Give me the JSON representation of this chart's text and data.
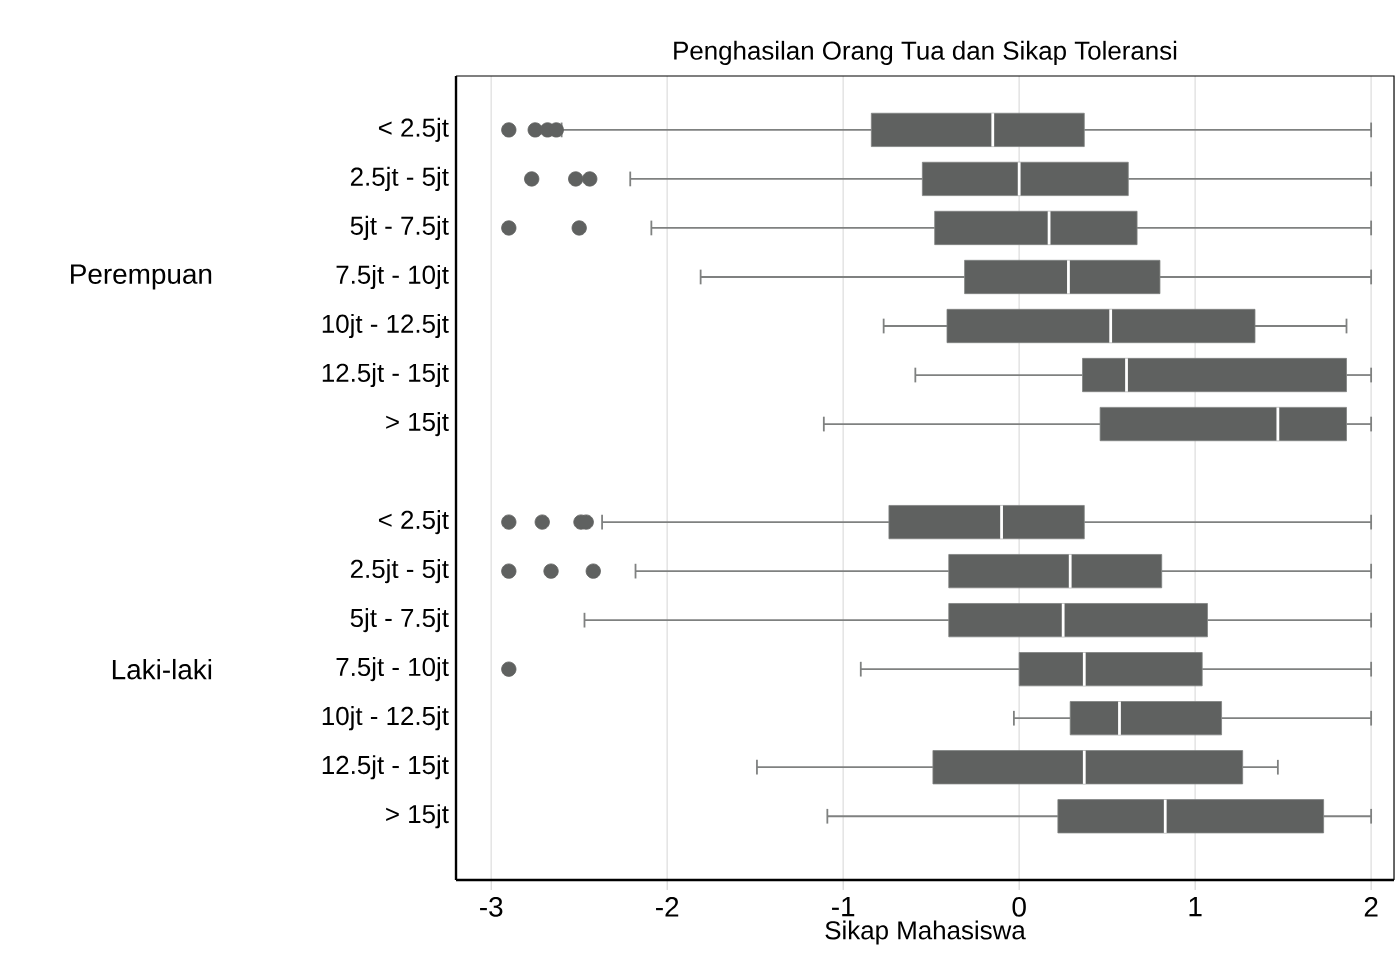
{
  "chart_data": {
    "type": "box",
    "orientation": "horizontal",
    "title": "Penghasilan Orang Tua dan Sikap Toleransi",
    "xlabel": "Sikap Mahasiswa",
    "categories": [
      "< 2.5jt",
      "2.5jt - 5jt",
      "5jt - 7.5jt",
      "7.5jt - 10jt",
      "10jt - 12.5jt",
      "12.5jt - 15jt",
      "> 15jt",
      "< 2.5jt",
      "2.5jt - 5jt",
      "5jt - 7.5jt",
      "7.5jt - 10jt",
      "10jt - 12.5jt",
      "12.5jt - 15jt",
      "> 15jt"
    ],
    "annotations": [
      "Perempuan",
      "Laki-laki"
    ],
    "color": "#5f6160",
    "boxes": [
      {
        "low": -2.6,
        "q1": -0.84,
        "median": -0.15,
        "q3": 0.37,
        "high": 2.0,
        "outliers": [
          -2.9,
          -2.75,
          -2.68,
          -2.63
        ]
      },
      {
        "low": -2.21,
        "q1": -0.55,
        "median": 0.0,
        "q3": 0.62,
        "high": 2.0,
        "outliers": [
          -2.77,
          -2.52,
          -2.44
        ]
      },
      {
        "low": -2.09,
        "q1": -0.48,
        "median": 0.17,
        "q3": 0.67,
        "high": 2.0,
        "outliers": [
          -2.9,
          -2.5
        ]
      },
      {
        "low": -1.81,
        "q1": -0.31,
        "median": 0.28,
        "q3": 0.8,
        "high": 2.0
      },
      {
        "low": -0.77,
        "q1": -0.41,
        "median": 0.52,
        "q3": 1.34,
        "high": 1.86
      },
      {
        "low": -0.59,
        "q1": 0.36,
        "median": 0.61,
        "q3": 1.86,
        "high": 2.0
      },
      {
        "low": -1.11,
        "q1": 0.46,
        "median": 1.47,
        "q3": 1.86,
        "high": 2.0
      },
      {
        "low": -2.37,
        "q1": -0.74,
        "median": -0.1,
        "q3": 0.37,
        "high": 2.0,
        "outliers": [
          -2.9,
          -2.71,
          -2.49,
          -2.46
        ]
      },
      {
        "low": -2.18,
        "q1": -0.4,
        "median": 0.29,
        "q3": 0.81,
        "high": 2.0,
        "outliers": [
          -2.9,
          -2.66,
          -2.42
        ]
      },
      {
        "low": -2.47,
        "q1": -0.4,
        "median": 0.25,
        "q3": 1.07,
        "high": 2.0
      },
      {
        "low": -0.9,
        "q1": 0.0,
        "median": 0.37,
        "q3": 1.04,
        "high": 2.0,
        "outliers": [
          -2.9
        ]
      },
      {
        "low": -0.03,
        "q1": 0.29,
        "median": 0.57,
        "q3": 1.15,
        "high": 2.0
      },
      {
        "low": -1.49,
        "q1": -0.49,
        "median": 0.37,
        "q3": 1.27,
        "high": 1.47
      },
      {
        "low": -1.09,
        "q1": 0.22,
        "median": 0.83,
        "q3": 1.73,
        "high": 2.0
      }
    ],
    "xlim": [
      -3.2,
      2.13
    ],
    "xticks": [
      -3,
      -2,
      -1,
      0,
      1,
      2
    ],
    "grid": "x"
  }
}
